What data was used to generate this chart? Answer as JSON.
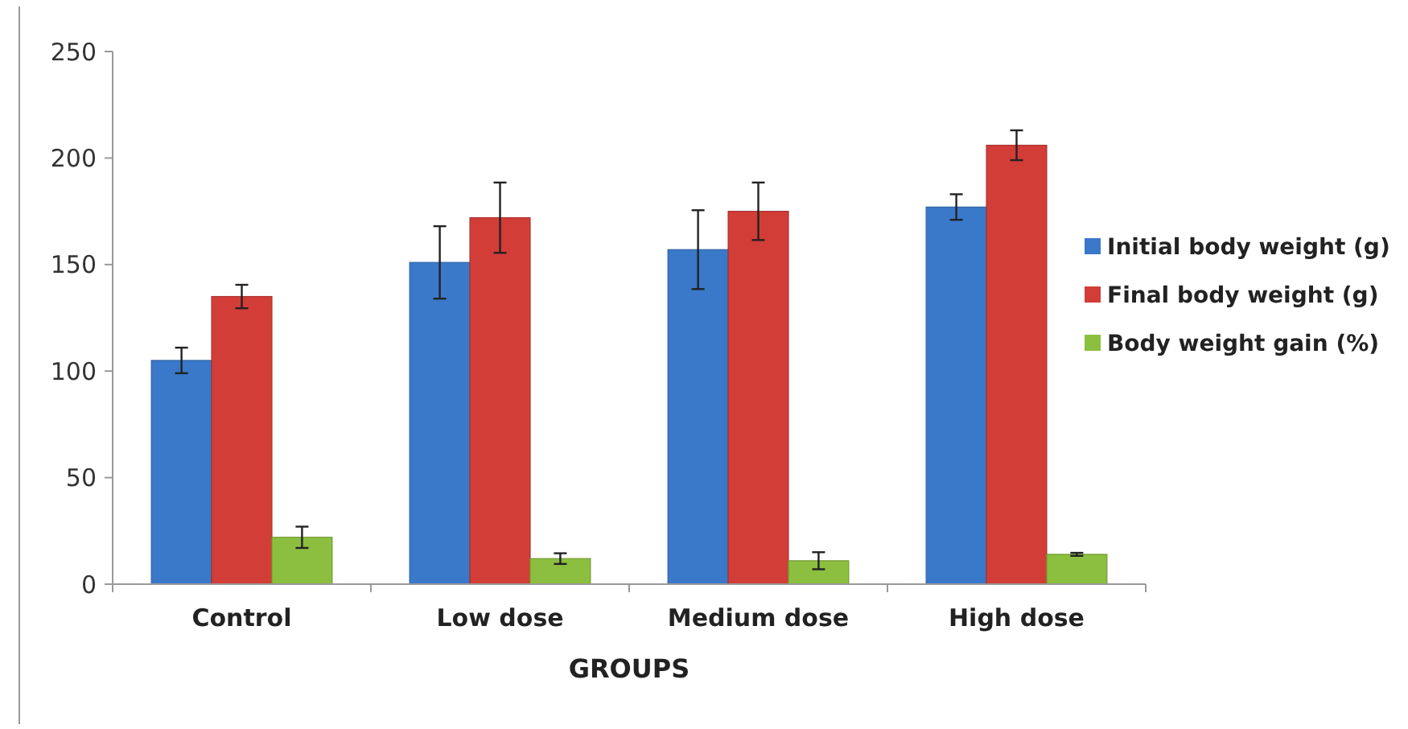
{
  "chart_data": {
    "type": "bar",
    "xlabel": "GROUPS",
    "categories": [
      "Control",
      "Low dose",
      "Medium dose",
      "High dose"
    ],
    "series": [
      {
        "name": "Initial body weight (g)",
        "color": "#3a78c9",
        "values": [
          105,
          151,
          157,
          177
        ],
        "errors": [
          6,
          17,
          18.5,
          6
        ]
      },
      {
        "name": "Final body weight (g)",
        "color": "#d33d38",
        "values": [
          135,
          172,
          175,
          206
        ],
        "errors": [
          5.5,
          16.5,
          13.5,
          7
        ]
      },
      {
        "name": "Body weight gain (%)",
        "color": "#8cbf3f",
        "values": [
          22,
          12,
          11,
          14
        ],
        "errors": [
          5,
          2.5,
          4,
          0.7
        ]
      }
    ],
    "ylim": [
      0,
      250
    ],
    "yticks": [
      0,
      50,
      100,
      150,
      200,
      250
    ],
    "grid": false,
    "legend": "right"
  }
}
